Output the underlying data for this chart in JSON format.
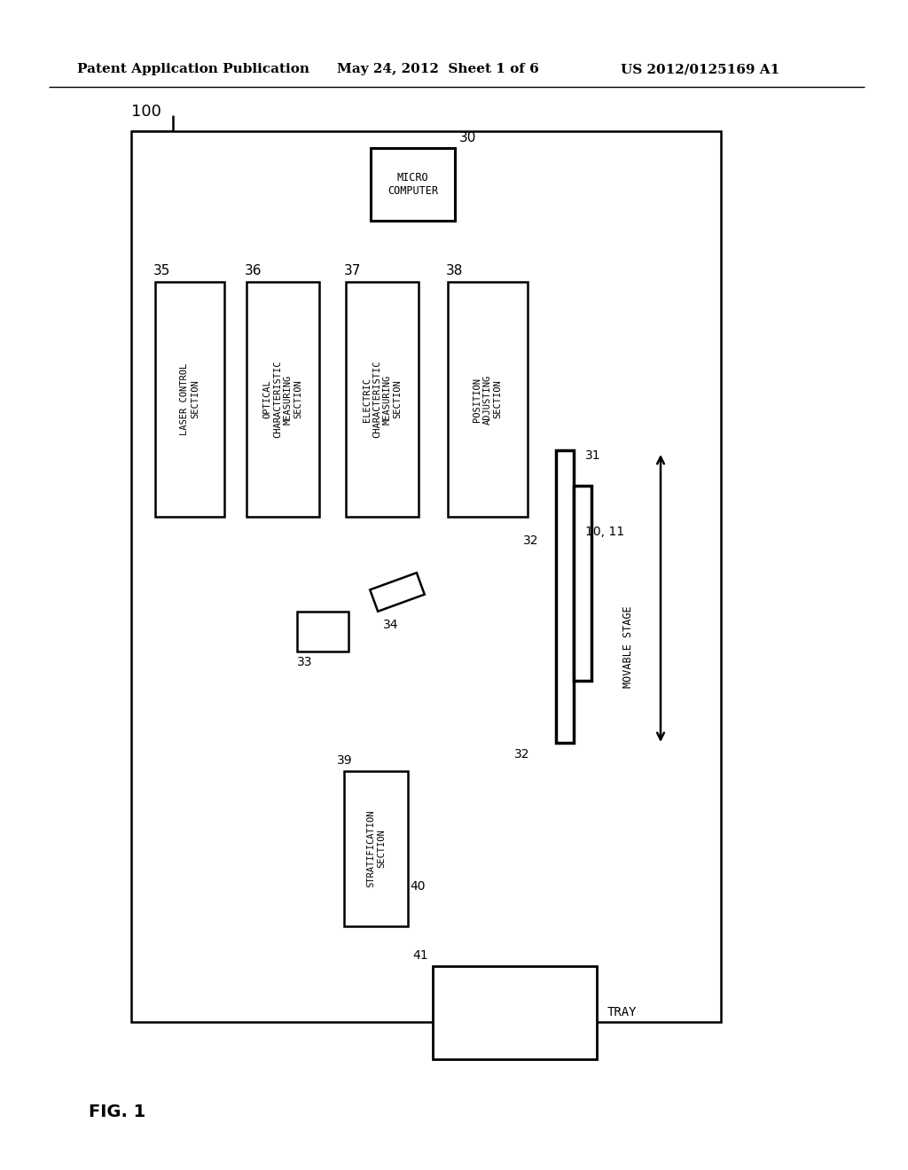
{
  "bg": "#ffffff",
  "lc": "#000000",
  "header_left": "Patent Application Publication",
  "header_mid": "May 24, 2012  Sheet 1 of 6",
  "header_right": "US 2012/0125169 A1",
  "fig_label": "FIG. 1",
  "label_100": "100",
  "label_30": "30",
  "label_35": "35",
  "label_36": "36",
  "label_37": "37",
  "label_38": "38",
  "label_31": "31",
  "label_32": "32",
  "label_33": "33",
  "label_34": "34",
  "label_39": "39",
  "label_40": "40",
  "label_41": "41",
  "label_1011": "10, 11",
  "text_mc": "MICRO\nCOMPUTER",
  "text_35": "LASER CONTROL\nSECTION",
  "text_36": "OPTICAL\nCHARACTERISTIC\nMEASURING\nSECTION",
  "text_37": "ELECTRIC\nCHARACTERISTIC\nMEASURING\nSECTION",
  "text_38": "POSITION\nADJUSTING\nSECTION",
  "text_39": "STRATIFICATION\nSECTION",
  "text_movstage": "MOVABLE STAGE",
  "text_tray": "TRAY"
}
